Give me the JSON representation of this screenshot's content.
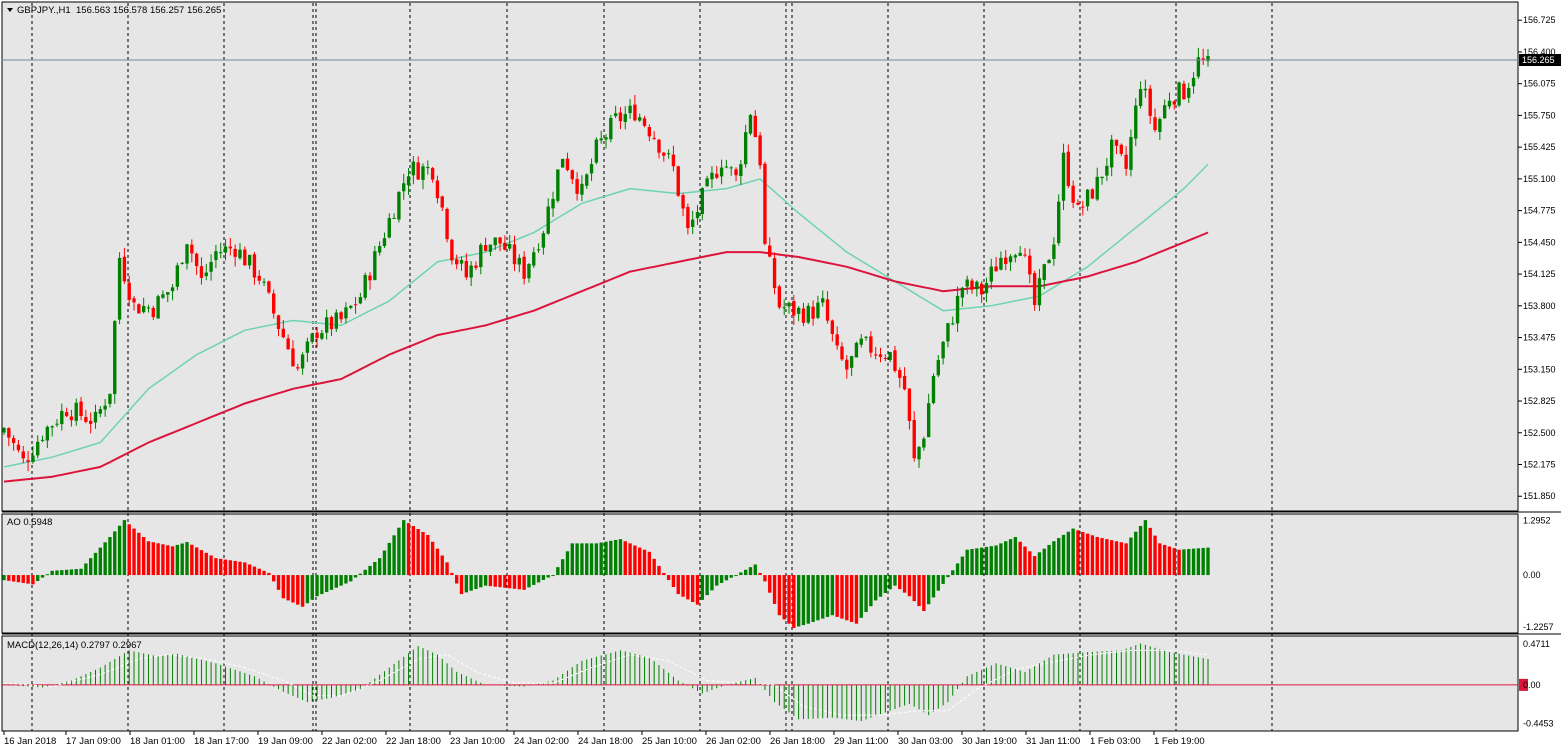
{
  "window": {
    "symbol_label": "GBPJPY.,H1",
    "ohlc_readout": "156.563 156.578 156.257 156.265",
    "current_price_tag": "156.265"
  },
  "indicators": {
    "ao_label": "AO 0.5948",
    "macd_label": "MACD(12,26,14) 0.2797 0.2967"
  },
  "colors": {
    "background": "#e6e6e6",
    "bull_candle": "#008000",
    "bear_candle": "#ff0000",
    "ma_fast": "#6ed3b0",
    "ma_slow": "#dc143c",
    "macd_signal": "#ffffff",
    "macd_zero": "#dc143c",
    "price_line": "#778899",
    "grid": "#000000"
  },
  "chart_data": [
    {
      "type": "candlestick",
      "title": "GBPJPY.,H1",
      "ylim": [
        151.75,
        156.85
      ],
      "yticks": [
        "156.725",
        "156.400",
        "156.075",
        "155.750",
        "155.425",
        "155.100",
        "154.775",
        "154.450",
        "154.125",
        "153.800",
        "153.475",
        "153.150",
        "152.825",
        "152.500",
        "152.175",
        "151.850"
      ],
      "xticks": [
        "16 Jan 2018",
        "17 Jan 09:00",
        "18 Jan 01:00",
        "18 Jan 17:00",
        "19 Jan 09:00",
        "22 Jan 02:00",
        "22 Jan 18:00",
        "23 Jan 10:00",
        "24 Jan 02:00",
        "24 Jan 18:00",
        "25 Jan 10:00",
        "26 Jan 02:00",
        "26 Jan 18:00",
        "29 Jan 11:00",
        "30 Jan 03:00",
        "30 Jan 19:00",
        "31 Jan 11:00",
        "1 Feb 03:00",
        "1 Feb 19:00"
      ],
      "close_path": [
        [
          0,
          152.55
        ],
        [
          4,
          152.2
        ],
        [
          8,
          152.5
        ],
        [
          13,
          152.75
        ],
        [
          19,
          152.62
        ],
        [
          22,
          152.95
        ],
        [
          24,
          154.3
        ],
        [
          27,
          153.8
        ],
        [
          31,
          153.78
        ],
        [
          35,
          154.0
        ],
        [
          38,
          154.5
        ],
        [
          41,
          154.05
        ],
        [
          44,
          154.35
        ],
        [
          48,
          154.4
        ],
        [
          53,
          154.1
        ],
        [
          57,
          153.6
        ],
        [
          61,
          153.15
        ],
        [
          65,
          153.55
        ],
        [
          70,
          153.65
        ],
        [
          74,
          153.9
        ],
        [
          79,
          154.55
        ],
        [
          84,
          155.2
        ],
        [
          89,
          155.2
        ],
        [
          91,
          154.8
        ],
        [
          93,
          154.35
        ],
        [
          96,
          154.1
        ],
        [
          100,
          154.45
        ],
        [
          103,
          154.45
        ],
        [
          108,
          154.15
        ],
        [
          112,
          154.6
        ],
        [
          116,
          155.35
        ],
        [
          120,
          154.95
        ],
        [
          123,
          155.4
        ],
        [
          127,
          155.7
        ],
        [
          131,
          155.8
        ],
        [
          135,
          155.55
        ],
        [
          139,
          155.2
        ],
        [
          142,
          154.55
        ],
        [
          145,
          154.9
        ],
        [
          149,
          155.3
        ],
        [
          152,
          155.1
        ],
        [
          155,
          155.8
        ],
        [
          157,
          155.3
        ],
        [
          158,
          154.4
        ],
        [
          161,
          153.8
        ],
        [
          164,
          153.75
        ],
        [
          167,
          153.72
        ],
        [
          170,
          153.8
        ],
        [
          173,
          153.3
        ],
        [
          175,
          153.15
        ],
        [
          178,
          153.4
        ],
        [
          181,
          153.35
        ],
        [
          184,
          153.3
        ],
        [
          187,
          152.95
        ],
        [
          189,
          152.2
        ],
        [
          191,
          152.5
        ],
        [
          193,
          153.1
        ],
        [
          196,
          153.55
        ],
        [
          199,
          154.0
        ],
        [
          203,
          153.95
        ],
        [
          207,
          154.3
        ],
        [
          211,
          154.45
        ],
        [
          214,
          153.8
        ],
        [
          218,
          154.5
        ],
        [
          220,
          155.3
        ],
        [
          223,
          154.75
        ],
        [
          227,
          155.05
        ],
        [
          230,
          155.4
        ],
        [
          233,
          155.2
        ],
        [
          236,
          156.1
        ],
        [
          239,
          155.6
        ],
        [
          242,
          155.95
        ],
        [
          245,
          156.0
        ],
        [
          248,
          156.3
        ],
        [
          250,
          156.26
        ]
      ],
      "ma_fast": [
        [
          0,
          152.15
        ],
        [
          10,
          152.25
        ],
        [
          20,
          152.4
        ],
        [
          30,
          152.95
        ],
        [
          40,
          153.3
        ],
        [
          50,
          153.55
        ],
        [
          60,
          153.65
        ],
        [
          70,
          153.6
        ],
        [
          80,
          153.85
        ],
        [
          90,
          154.25
        ],
        [
          100,
          154.35
        ],
        [
          110,
          154.55
        ],
        [
          120,
          154.85
        ],
        [
          130,
          155.0
        ],
        [
          140,
          154.95
        ],
        [
          150,
          155.0
        ],
        [
          157,
          155.1
        ],
        [
          165,
          154.75
        ],
        [
          175,
          154.35
        ],
        [
          185,
          154.05
        ],
        [
          195,
          153.75
        ],
        [
          205,
          153.8
        ],
        [
          215,
          153.9
        ],
        [
          225,
          154.2
        ],
        [
          235,
          154.6
        ],
        [
          245,
          155.0
        ],
        [
          250,
          155.25
        ]
      ],
      "ma_slow": [
        [
          0,
          152.0
        ],
        [
          10,
          152.05
        ],
        [
          20,
          152.15
        ],
        [
          30,
          152.4
        ],
        [
          40,
          152.6
        ],
        [
          50,
          152.8
        ],
        [
          60,
          152.95
        ],
        [
          70,
          153.05
        ],
        [
          80,
          153.3
        ],
        [
          90,
          153.5
        ],
        [
          100,
          153.6
        ],
        [
          110,
          153.75
        ],
        [
          120,
          153.95
        ],
        [
          130,
          154.15
        ],
        [
          140,
          154.25
        ],
        [
          150,
          154.35
        ],
        [
          157,
          154.35
        ],
        [
          165,
          154.3
        ],
        [
          175,
          154.2
        ],
        [
          185,
          154.05
        ],
        [
          195,
          153.95
        ],
        [
          205,
          154.0
        ],
        [
          215,
          154.0
        ],
        [
          225,
          154.1
        ],
        [
          235,
          154.25
        ],
        [
          245,
          154.45
        ],
        [
          250,
          154.55
        ]
      ]
    },
    {
      "type": "bar",
      "title": "AO 0.5948",
      "ylim": [
        -1.3,
        1.35
      ],
      "yticks": [
        "1.2952",
        "0.00",
        "-1.2257"
      ],
      "ao_path": [
        [
          0,
          -0.12
        ],
        [
          6,
          -0.22
        ],
        [
          10,
          0.1
        ],
        [
          16,
          0.15
        ],
        [
          22,
          0.9
        ],
        [
          25,
          1.3
        ],
        [
          30,
          0.8
        ],
        [
          35,
          0.68
        ],
        [
          38,
          0.78
        ],
        [
          44,
          0.4
        ],
        [
          50,
          0.3
        ],
        [
          55,
          0.05
        ],
        [
          58,
          -0.55
        ],
        [
          62,
          -0.75
        ],
        [
          65,
          -0.5
        ],
        [
          72,
          -0.15
        ],
        [
          78,
          0.4
        ],
        [
          83,
          1.3
        ],
        [
          88,
          0.95
        ],
        [
          92,
          0.3
        ],
        [
          95,
          -0.45
        ],
        [
          100,
          -0.25
        ],
        [
          108,
          -0.35
        ],
        [
          114,
          0.0
        ],
        [
          118,
          0.75
        ],
        [
          123,
          0.75
        ],
        [
          128,
          0.85
        ],
        [
          134,
          0.55
        ],
        [
          140,
          -0.45
        ],
        [
          144,
          -0.7
        ],
        [
          148,
          -0.25
        ],
        [
          152,
          0.0
        ],
        [
          156,
          0.25
        ],
        [
          158,
          -0.15
        ],
        [
          161,
          -0.95
        ],
        [
          164,
          -1.25
        ],
        [
          167,
          -1.15
        ],
        [
          172,
          -0.95
        ],
        [
          177,
          -1.15
        ],
        [
          181,
          -0.6
        ],
        [
          185,
          -0.25
        ],
        [
          188,
          -0.5
        ],
        [
          191,
          -0.85
        ],
        [
          196,
          -0.05
        ],
        [
          200,
          0.6
        ],
        [
          206,
          0.7
        ],
        [
          210,
          0.9
        ],
        [
          214,
          0.45
        ],
        [
          218,
          0.8
        ],
        [
          222,
          1.1
        ],
        [
          227,
          0.9
        ],
        [
          233,
          0.75
        ],
        [
          237,
          1.3
        ],
        [
          240,
          0.75
        ],
        [
          244,
          0.6
        ],
        [
          250,
          0.65
        ]
      ]
    },
    {
      "type": "bar",
      "title": "MACD(12,26,14) 0.2797 0.2967",
      "ylim": [
        -0.5,
        0.52
      ],
      "yticks": [
        "0.4711",
        "0.00",
        "-0.4453"
      ],
      "macd_path": [
        [
          0,
          0.0
        ],
        [
          8,
          -0.03
        ],
        [
          14,
          0.05
        ],
        [
          20,
          0.2
        ],
        [
          26,
          0.4
        ],
        [
          32,
          0.33
        ],
        [
          36,
          0.36
        ],
        [
          44,
          0.25
        ],
        [
          52,
          0.1
        ],
        [
          58,
          -0.08
        ],
        [
          63,
          -0.2
        ],
        [
          68,
          -0.15
        ],
        [
          74,
          -0.05
        ],
        [
          80,
          0.2
        ],
        [
          86,
          0.45
        ],
        [
          90,
          0.35
        ],
        [
          94,
          0.15
        ],
        [
          100,
          0.0
        ],
        [
          108,
          -0.02
        ],
        [
          114,
          0.05
        ],
        [
          120,
          0.28
        ],
        [
          128,
          0.4
        ],
        [
          134,
          0.32
        ],
        [
          140,
          0.05
        ],
        [
          145,
          -0.1
        ],
        [
          150,
          0.0
        ],
        [
          156,
          0.08
        ],
        [
          160,
          -0.2
        ],
        [
          165,
          -0.4
        ],
        [
          172,
          -0.38
        ],
        [
          178,
          -0.42
        ],
        [
          184,
          -0.3
        ],
        [
          188,
          -0.22
        ],
        [
          192,
          -0.35
        ],
        [
          196,
          -0.2
        ],
        [
          200,
          0.1
        ],
        [
          206,
          0.25
        ],
        [
          212,
          0.15
        ],
        [
          218,
          0.35
        ],
        [
          225,
          0.38
        ],
        [
          232,
          0.4
        ],
        [
          236,
          0.48
        ],
        [
          242,
          0.38
        ],
        [
          250,
          0.3
        ]
      ],
      "signal_path": [
        [
          0,
          0.02
        ],
        [
          10,
          -0.02
        ],
        [
          20,
          0.12
        ],
        [
          28,
          0.3
        ],
        [
          34,
          0.35
        ],
        [
          42,
          0.3
        ],
        [
          50,
          0.2
        ],
        [
          58,
          0.05
        ],
        [
          64,
          -0.12
        ],
        [
          70,
          -0.13
        ],
        [
          78,
          0.05
        ],
        [
          86,
          0.3
        ],
        [
          92,
          0.35
        ],
        [
          98,
          0.15
        ],
        [
          106,
          0.02
        ],
        [
          114,
          0.02
        ],
        [
          122,
          0.2
        ],
        [
          130,
          0.35
        ],
        [
          138,
          0.28
        ],
        [
          146,
          0.05
        ],
        [
          154,
          0.02
        ],
        [
          160,
          0.0
        ],
        [
          166,
          -0.25
        ],
        [
          174,
          -0.35
        ],
        [
          182,
          -0.35
        ],
        [
          190,
          -0.3
        ],
        [
          196,
          -0.3
        ],
        [
          202,
          -0.05
        ],
        [
          210,
          0.18
        ],
        [
          218,
          0.27
        ],
        [
          226,
          0.35
        ],
        [
          234,
          0.4
        ],
        [
          242,
          0.4
        ],
        [
          250,
          0.35
        ]
      ]
    }
  ]
}
